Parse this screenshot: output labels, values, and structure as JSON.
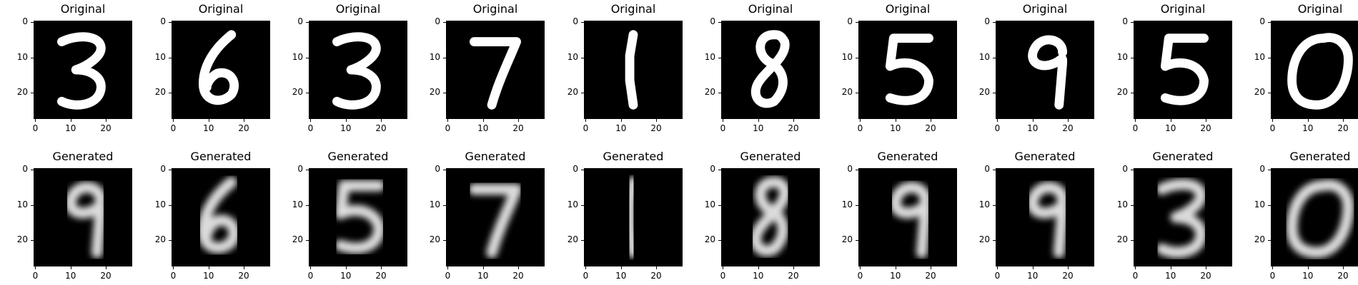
{
  "figure": {
    "colormap": "gray",
    "background": "#ffffff",
    "image_background": "#000000",
    "stroke_color": "#ffffff",
    "x_ticks": [
      "0",
      "10",
      "20"
    ],
    "y_ticks": [
      "0",
      "10",
      "20"
    ],
    "x_tick_values": [
      0,
      10,
      20
    ],
    "y_tick_values": [
      0,
      10,
      20
    ],
    "image_extent": [
      0,
      28
    ],
    "rows": [
      {
        "title": "Original",
        "panels": [
          {
            "digit": "3"
          },
          {
            "digit": "6"
          },
          {
            "digit": "3"
          },
          {
            "digit": "7"
          },
          {
            "digit": "1"
          },
          {
            "digit": "8"
          },
          {
            "digit": "5"
          },
          {
            "digit": "9"
          },
          {
            "digit": "5"
          },
          {
            "digit": "0"
          }
        ]
      },
      {
        "title": "Generated",
        "panels": [
          {
            "digit": "9"
          },
          {
            "digit": "6"
          },
          {
            "digit": "5"
          },
          {
            "digit": "7"
          },
          {
            "digit": "1"
          },
          {
            "digit": "8"
          },
          {
            "digit": "9"
          },
          {
            "digit": "9"
          },
          {
            "digit": "3"
          },
          {
            "digit": "0"
          }
        ]
      }
    ]
  }
}
